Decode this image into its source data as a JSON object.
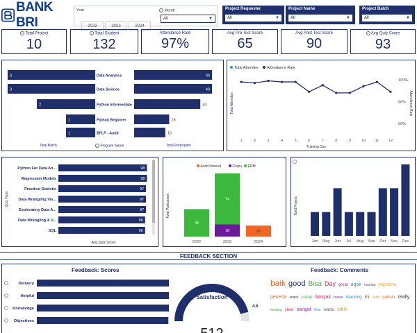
{
  "brand": {
    "name": "BANK BRI"
  },
  "filters": {
    "year_label": "Year",
    "years": [
      "2022",
      "2023",
      "2024"
    ],
    "month_label": "Month",
    "month_value": "All",
    "project_requester_label": "Project Requester",
    "project_requester_value": "All",
    "project_name_label": "Project Name",
    "project_name_value": "All",
    "project_batch_label": "Project Batch",
    "project_batch_value": "All"
  },
  "kpis": [
    {
      "label": "Total Project",
      "value": "10"
    },
    {
      "label": "Total Student",
      "value": "132"
    },
    {
      "label": "Attendance Rate",
      "value": "97%"
    },
    {
      "label": "Avg Pre Test Score",
      "value": "65"
    },
    {
      "label": "Avg Post Test Score",
      "value": "90"
    },
    {
      "label": "Avg Quiz Score",
      "value": "93"
    }
  ],
  "program_chart": {
    "left_axis_label": "Total Batch",
    "center_label": "Program Name",
    "right_axis_label": "Total Participant"
  },
  "attendance_chart": {
    "legend_total": "Total Attendee",
    "legend_rate": "Attendance Rate",
    "ylabel_left": "Total Attendee",
    "ylabel_right": "Attendance Rate",
    "xlabel": "Training Day",
    "right_ticks": [
      "100%",
      "80%",
      "60%"
    ]
  },
  "quiz_chart": {
    "ylabel": "Quiz Topic",
    "xlabel": "Avg Quiz Score"
  },
  "year_chart": {
    "legend": [
      "Audit Internal",
      "Corpu",
      "EDM"
    ],
    "ylabel": "Total Participant"
  },
  "month_chart": {
    "ylabel": "Total Project"
  },
  "section": {
    "title": "FEEDBACK SECTION"
  },
  "feedback_scores": {
    "title": "Feedback: Scores"
  },
  "satisfaction": {
    "label": "Satisfaction",
    "value": "4.6",
    "count": "512"
  },
  "feedback_comments": {
    "title": "Feedback: Comments",
    "words": [
      "baik",
      "good",
      "Bisa",
      "Day",
      "great",
      "agak",
      "mantap",
      "Algoritma",
      "peserta",
      "snack",
      "cukup",
      "banyak",
      "materi",
      "teaching",
      "ini",
      "Jobs",
      "paham",
      "really",
      "tentang",
      "clear",
      "sangat",
      "Sesi",
      "waktu",
      "lebih"
    ]
  },
  "colors": {
    "navy": "#1f2f6b",
    "green": "#3cb93c",
    "purple": "#6a1b9a",
    "orange": "#f26522",
    "line_blue": "#2196f3"
  },
  "chart_data": [
    {
      "type": "bar",
      "orientation": "horizontal",
      "categories": [
        "Data Analytics",
        "Data Science",
        "Python Intermediate",
        "Python Beginner",
        "BFLP - Audit"
      ],
      "series": [
        {
          "name": "Total Batch",
          "values": [
            3,
            3,
            2,
            1,
            1
          ]
        },
        {
          "name": "Total Participant",
          "values": [
            40,
            40,
            34,
            18,
            16
          ]
        }
      ]
    },
    {
      "type": "line",
      "x": [
        1,
        2,
        3,
        4,
        5,
        6,
        7,
        8,
        9,
        10,
        11,
        12
      ],
      "series": [
        {
          "name": "Total Attendee",
          "values": [
            1,
            1,
            1,
            1,
            1,
            1,
            1,
            1,
            1,
            1,
            1,
            1
          ]
        },
        {
          "name": "Attendance Rate",
          "values": [
            98,
            97,
            99,
            98,
            98,
            89,
            95,
            88,
            88,
            94,
            98,
            89
          ]
        }
      ],
      "y2lim": [
        50,
        105
      ]
    },
    {
      "type": "bar",
      "orientation": "horizontal",
      "categories": [
        "Python For Data An...",
        "Regression Models",
        "Practical Statistic",
        "Data Wrangling Vis...",
        "Exploratory Data A...",
        "Data Wrangling & V...",
        "SQL"
      ],
      "values": [
        98,
        98,
        97,
        97,
        97,
        96,
        96
      ],
      "xlim": [
        0,
        100
      ]
    },
    {
      "type": "bar",
      "stacked": true,
      "categories": [
        "2022",
        "2023",
        "2024"
      ],
      "series": [
        {
          "name": "Audit Internal",
          "values": [
            0,
            0,
            16
          ]
        },
        {
          "name": "Corpu",
          "values": [
            0,
            18,
            0
          ]
        },
        {
          "name": "EDM",
          "values": [
            40,
            74,
            0
          ]
        }
      ],
      "ylim": [
        0,
        95
      ]
    },
    {
      "type": "bar",
      "categories": [
        "Jan",
        "May",
        "Jun",
        "Jul",
        "Aug",
        "Sep",
        "Oct",
        "Nov",
        "Dec"
      ],
      "values": [
        1,
        1,
        2,
        1,
        1,
        1,
        2,
        2,
        3
      ],
      "ylim": [
        0,
        3
      ]
    },
    {
      "type": "bar",
      "orientation": "horizontal",
      "categories": [
        "Delivery",
        "Helpful",
        "Knowledge",
        "Objectives"
      ],
      "values": [
        4.6,
        4.63,
        4.63,
        4.55
      ],
      "xlim": [
        0,
        5
      ]
    }
  ]
}
